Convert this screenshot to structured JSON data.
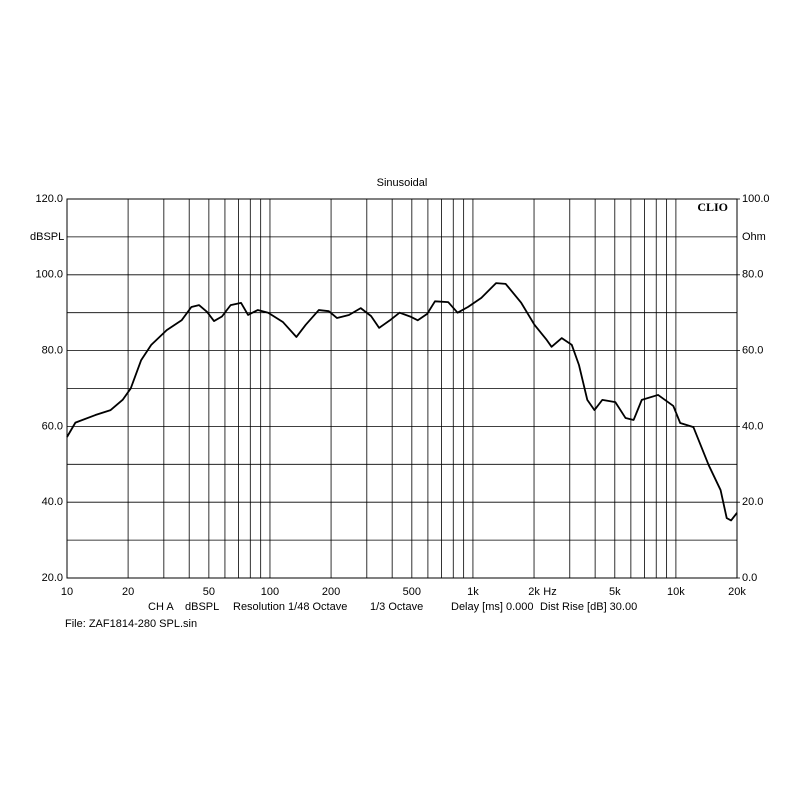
{
  "chart_data": {
    "type": "line",
    "title": "Sinusoidal",
    "brand": "CLIO",
    "y_unit": "dBSPL",
    "y2_unit": "Ohm",
    "x_unit": "Hz",
    "footer": [
      "CH A",
      "dBSPL",
      "Resolution 1/48 Octave",
      "1/3 Octave",
      "Delay [ms] 0.000",
      "Dist Rise [dB] 30.00"
    ],
    "file": "File: ZAF1814-280 SPL.sin",
    "xscale": "log",
    "grid": true,
    "xlim": [
      10,
      20000
    ],
    "xticks": [
      10,
      20,
      50,
      100,
      200,
      500,
      {
        "value": 1000,
        "label": "1k"
      },
      {
        "value": 2000,
        "label": "2k"
      },
      {
        "value": 5000,
        "label": "5k"
      },
      {
        "value": 10000,
        "label": "10k"
      },
      {
        "value": 20000,
        "label": "20k"
      }
    ],
    "minor_xgrid": [
      30,
      40,
      60,
      70,
      80,
      90,
      300,
      400,
      600,
      700,
      800,
      900,
      3000,
      4000,
      6000,
      7000,
      8000,
      9000
    ],
    "ylim": [
      20,
      120
    ],
    "yticks": [
      {
        "value": 120,
        "label": "120.0"
      },
      {
        "value": 100,
        "label": "100.0"
      },
      {
        "value": 80,
        "label": "80.0"
      },
      {
        "value": 60,
        "label": "60.0"
      },
      {
        "value": 40,
        "label": "40.0"
      },
      {
        "value": 20,
        "label": "20.0"
      }
    ],
    "minor_ygrid": [
      110,
      90,
      70,
      50,
      30
    ],
    "y2lim": [
      0,
      100
    ],
    "y2ticks": [
      {
        "value": 100,
        "label": "100.0"
      },
      {
        "value": 80,
        "label": "80.0"
      },
      {
        "value": 60,
        "label": "60.0"
      },
      {
        "value": 40,
        "label": "40.0"
      },
      {
        "value": 20,
        "label": "20.0"
      },
      {
        "value": 0,
        "label": "0.0"
      }
    ],
    "series": [
      {
        "name": "SPL",
        "color": "#000000",
        "x": [
          10,
          11,
          13.8,
          16.4,
          18.8,
          20.6,
          23.2,
          26,
          31,
          36.7,
          41,
          44.7,
          49,
          53,
          58,
          64,
          72,
          78,
          87,
          98,
          116,
          135,
          150,
          174,
          195,
          214,
          245,
          280,
          315,
          345,
          390,
          435,
          490,
          535,
          595,
          650,
          755,
          840,
          945,
          1100,
          1300,
          1450,
          1730,
          2010,
          2310,
          2440,
          2740,
          3070,
          3330,
          3660,
          3970,
          4340,
          5030,
          5650,
          6190,
          6790,
          8170,
          9710,
          10500,
          12200,
          14500,
          16600,
          17800,
          18700,
          20000
        ],
        "values": [
          57.2,
          61,
          63,
          64.3,
          67,
          70,
          77.5,
          81.5,
          85.4,
          88,
          91.5,
          92,
          90.2,
          87.8,
          89,
          92,
          92.6,
          89.4,
          90.7,
          90,
          87.5,
          83.6,
          86.8,
          90.7,
          90.4,
          88.6,
          89.4,
          91.2,
          89.1,
          86,
          88,
          90,
          89,
          88,
          89.7,
          93,
          92.8,
          90,
          91.5,
          93.9,
          97.8,
          97.6,
          92.6,
          86.8,
          82.8,
          81,
          83.3,
          81.5,
          76.2,
          67,
          64.3,
          67,
          66.4,
          62.2,
          61.7,
          67,
          68.3,
          65.4,
          60.9,
          59.8,
          49.8,
          43.2,
          35.8,
          35.2,
          37.2
        ]
      }
    ]
  }
}
